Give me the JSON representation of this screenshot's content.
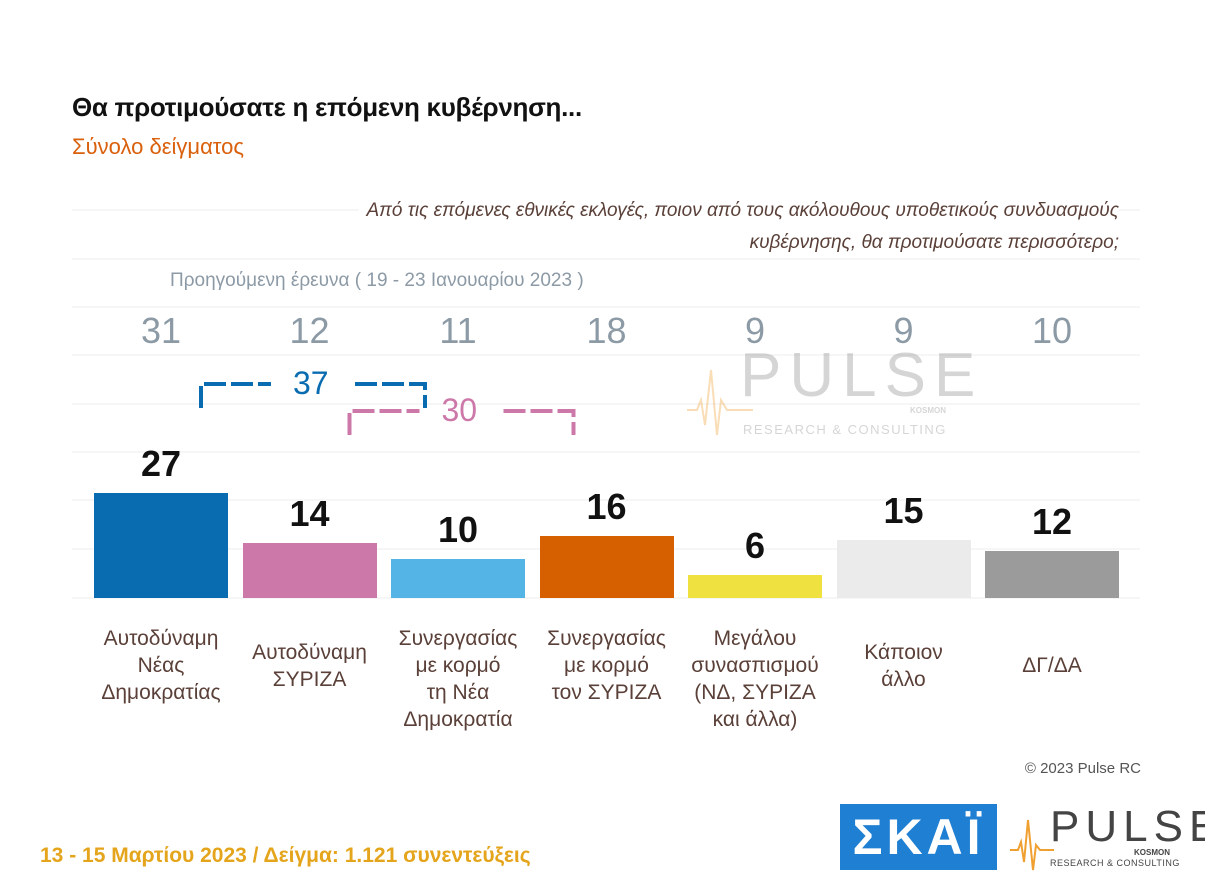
{
  "header": {
    "title": "Θα προτιμούσατε η επόμενη κυβέρνηση...",
    "subtitle": "Σύνολο δείγματος"
  },
  "question": {
    "line1": "Από τις επόμενες εθνικές εκλογές, ποιον από τους ακόλουθους υποθετικούς συνδυασμούς",
    "line2": "κυβέρνησης, θα προτιμούσατε περισσότερο;"
  },
  "previous_survey_label": "Προηγούμενη έρευνα  ( 19 - 23 Ιανουαρίου  2023 )",
  "chart_data": {
    "type": "bar",
    "categories": [
      [
        "Αυτοδύναμη",
        "Νέας",
        "Δημοκρατίας"
      ],
      [
        "Αυτοδύναμη",
        "ΣΥΡΙΖΑ"
      ],
      [
        "Συνεργασίας",
        "με κορμό",
        "τη Νέα",
        "Δημοκρατία"
      ],
      [
        "Συνεργασίας",
        "με κορμό",
        "τον ΣΥΡΙΖΑ"
      ],
      [
        "Μεγάλου",
        "συνασπισμού",
        "(ΝΔ, ΣΥΡΙΖΑ",
        "και άλλα)"
      ],
      [
        "Κάποιον",
        "άλλο"
      ],
      [
        "ΔΓ/ΔΑ"
      ]
    ],
    "values": [
      27,
      14,
      10,
      16,
      6,
      15,
      12
    ],
    "previous_values": [
      31,
      12,
      11,
      18,
      9,
      9,
      10
    ],
    "colors": [
      "#0a6cb0",
      "#cc78a8",
      "#54b4e6",
      "#d65f00",
      "#efe140",
      "#ebebeb",
      "#9b9b9b"
    ],
    "ylim": [
      0,
      40
    ],
    "grid": true,
    "brackets": [
      {
        "value": "37",
        "from": 0,
        "to": 2,
        "color": "#0a6cb0"
      },
      {
        "value": "30",
        "from": 1,
        "to": 3,
        "color": "#cc78a8"
      }
    ]
  },
  "copyright": "© 2023 Pulse RC",
  "footer": "13 - 15  Μαρτίου  2023  /  Δείγμα:  1.121 συνεντεύξεις",
  "logos": {
    "skai": "ΣΚΑΪ",
    "pulse_word": "PULSE",
    "pulse_kosmon": "KOSMON",
    "pulse_tagline": "RESEARCH & CONSULTING",
    "skai_color": "#1f7fd2",
    "pulse_accent": "#f0a030"
  }
}
